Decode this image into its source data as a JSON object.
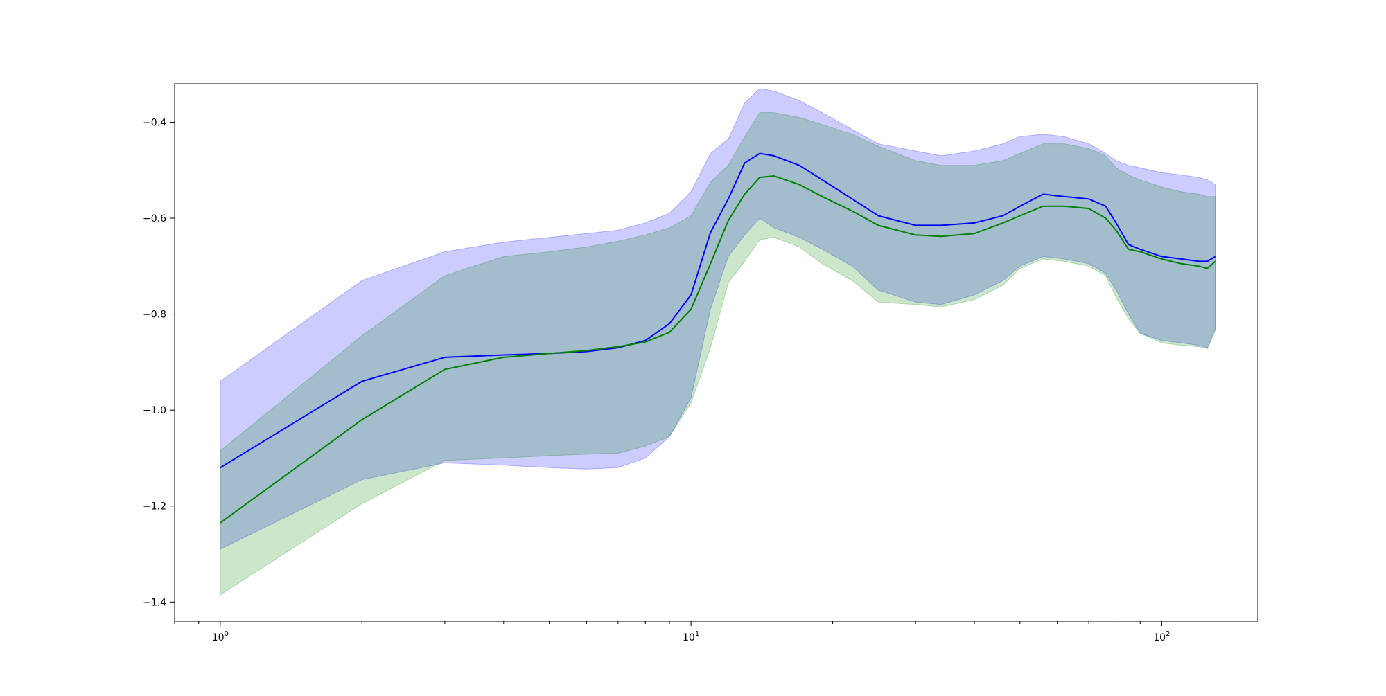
{
  "chart_data": {
    "type": "line",
    "title": "",
    "xlabel": "",
    "ylabel": "",
    "xscale": "log",
    "xlim": [
      0.8,
      160
    ],
    "ylim": [
      -1.44,
      -0.32
    ],
    "grid": false,
    "legend": "none",
    "x_ticks": [
      {
        "value": 1,
        "label": "10",
        "exp": "0"
      },
      {
        "value": 10,
        "label": "10",
        "exp": "1"
      },
      {
        "value": 100,
        "label": "10",
        "exp": "2"
      }
    ],
    "y_ticks": [
      {
        "value": -0.4,
        "label": "−0.4"
      },
      {
        "value": -0.6,
        "label": "−0.6"
      },
      {
        "value": -0.8,
        "label": "−0.8"
      },
      {
        "value": -1.0,
        "label": "−1.0"
      },
      {
        "value": -1.2,
        "label": "−1.2"
      },
      {
        "value": -1.4,
        "label": "−1.4"
      }
    ],
    "series": [
      {
        "color": "#0000ff",
        "band_color": "#0000ff",
        "band_opacity": 0.2,
        "x": [
          1,
          2,
          3,
          4,
          5,
          6,
          7,
          8,
          9,
          10,
          11,
          12,
          13,
          14,
          15,
          17,
          19,
          22,
          25,
          30,
          34,
          40,
          46,
          50,
          56,
          62,
          70,
          76,
          80,
          85,
          90,
          100,
          110,
          120,
          125,
          130
        ],
        "y": [
          -1.12,
          -0.94,
          -0.89,
          -0.885,
          -0.882,
          -0.878,
          -0.87,
          -0.855,
          -0.82,
          -0.76,
          -0.63,
          -0.56,
          -0.485,
          -0.465,
          -0.47,
          -0.49,
          -0.52,
          -0.56,
          -0.595,
          -0.615,
          -0.615,
          -0.61,
          -0.595,
          -0.575,
          -0.55,
          -0.555,
          -0.56,
          -0.575,
          -0.61,
          -0.655,
          -0.665,
          -0.68,
          -0.685,
          -0.69,
          -0.69,
          -0.68
        ],
        "upper": [
          -0.94,
          -0.73,
          -0.67,
          -0.65,
          -0.64,
          -0.632,
          -0.625,
          -0.61,
          -0.59,
          -0.545,
          -0.465,
          -0.435,
          -0.36,
          -0.33,
          -0.335,
          -0.355,
          -0.38,
          -0.415,
          -0.445,
          -0.46,
          -0.47,
          -0.46,
          -0.445,
          -0.43,
          -0.425,
          -0.43,
          -0.445,
          -0.465,
          -0.48,
          -0.49,
          -0.495,
          -0.505,
          -0.51,
          -0.515,
          -0.52,
          -0.53
        ],
        "lower": [
          -1.29,
          -1.145,
          -1.11,
          -1.115,
          -1.12,
          -1.123,
          -1.12,
          -1.1,
          -1.055,
          -0.975,
          -0.79,
          -0.68,
          -0.635,
          -0.6,
          -0.62,
          -0.64,
          -0.665,
          -0.7,
          -0.75,
          -0.775,
          -0.78,
          -0.76,
          -0.73,
          -0.7,
          -0.68,
          -0.685,
          -0.695,
          -0.715,
          -0.75,
          -0.8,
          -0.84,
          -0.855,
          -0.86,
          -0.865,
          -0.87,
          -0.83
        ]
      },
      {
        "color": "#008000",
        "band_color": "#008000",
        "band_opacity": 0.2,
        "x": [
          1,
          2,
          3,
          4,
          5,
          6,
          7,
          8,
          9,
          10,
          11,
          12,
          13,
          14,
          15,
          17,
          19,
          22,
          25,
          30,
          34,
          40,
          46,
          50,
          56,
          62,
          70,
          76,
          80,
          85,
          90,
          100,
          110,
          120,
          125,
          130
        ],
        "y": [
          -1.235,
          -1.02,
          -0.915,
          -0.89,
          -0.882,
          -0.876,
          -0.868,
          -0.858,
          -0.838,
          -0.79,
          -0.695,
          -0.605,
          -0.55,
          -0.515,
          -0.512,
          -0.53,
          -0.555,
          -0.585,
          -0.615,
          -0.635,
          -0.638,
          -0.632,
          -0.61,
          -0.595,
          -0.575,
          -0.575,
          -0.58,
          -0.6,
          -0.625,
          -0.665,
          -0.67,
          -0.685,
          -0.695,
          -0.7,
          -0.705,
          -0.69
        ],
        "upper": [
          -1.085,
          -0.845,
          -0.72,
          -0.68,
          -0.67,
          -0.66,
          -0.648,
          -0.635,
          -0.62,
          -0.595,
          -0.525,
          -0.49,
          -0.43,
          -0.38,
          -0.38,
          -0.39,
          -0.405,
          -0.425,
          -0.45,
          -0.48,
          -0.49,
          -0.49,
          -0.48,
          -0.465,
          -0.445,
          -0.445,
          -0.455,
          -0.47,
          -0.495,
          -0.51,
          -0.52,
          -0.535,
          -0.545,
          -0.55,
          -0.555,
          -0.555
        ],
        "lower": [
          -1.385,
          -1.195,
          -1.105,
          -1.1,
          -1.095,
          -1.092,
          -1.09,
          -1.075,
          -1.055,
          -0.985,
          -0.87,
          -0.735,
          -0.69,
          -0.645,
          -0.64,
          -0.66,
          -0.695,
          -0.73,
          -0.775,
          -0.78,
          -0.785,
          -0.77,
          -0.74,
          -0.705,
          -0.685,
          -0.69,
          -0.7,
          -0.72,
          -0.765,
          -0.81,
          -0.84,
          -0.86,
          -0.865,
          -0.868,
          -0.872,
          -0.835
        ]
      }
    ]
  }
}
